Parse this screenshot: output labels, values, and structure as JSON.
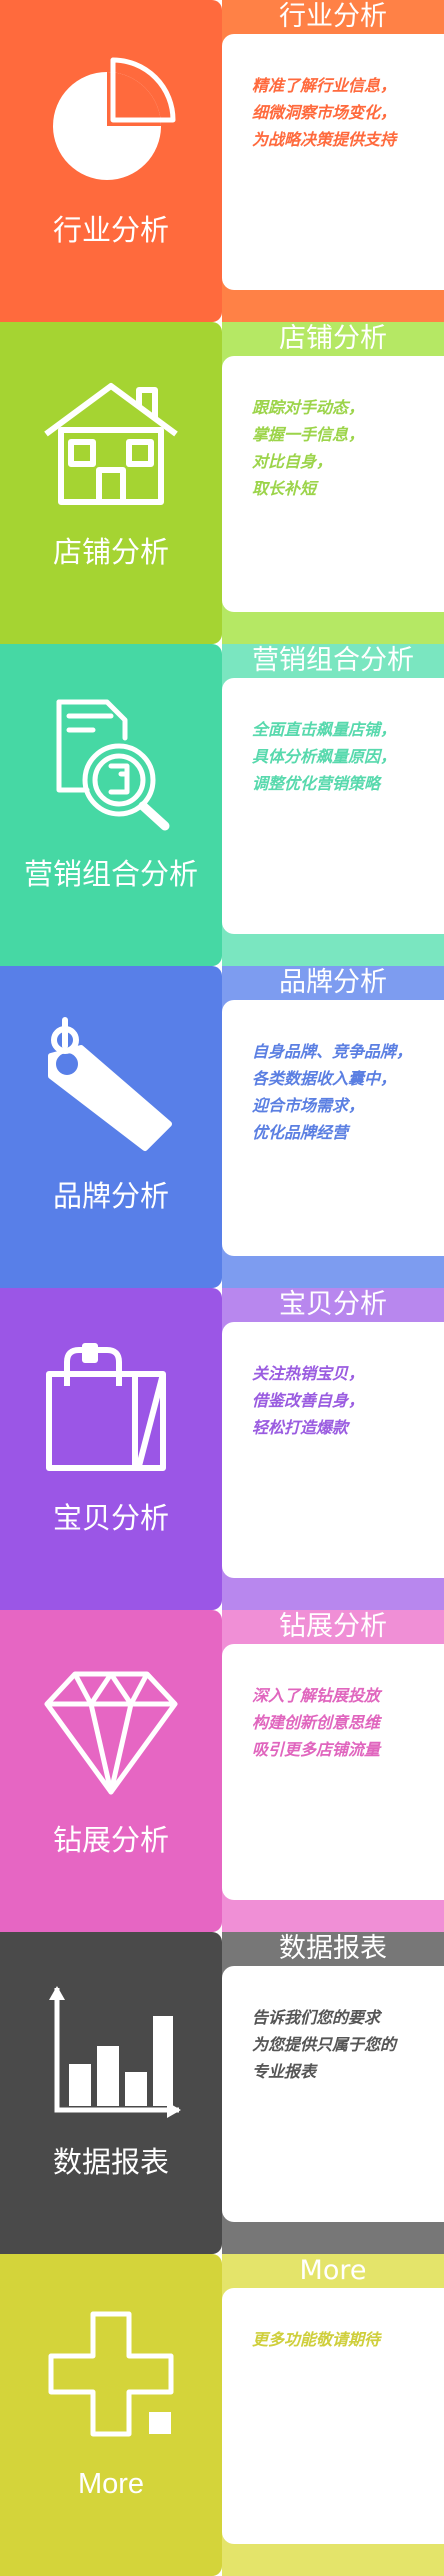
{
  "panels": [
    {
      "title": "行业分析",
      "label": "行业分析",
      "icon": "pie-chart-icon",
      "colors": {
        "left": "#ff6a3d",
        "bar": "#ff8146",
        "card_text": "#ff6a3d"
      },
      "lines": [
        "精准了解行业信息，",
        "细微洞察市场变化，",
        "为战略决策提供支持"
      ]
    },
    {
      "title": "店铺分析",
      "label": "店铺分析",
      "icon": "house-icon",
      "colors": {
        "left": "#a5d432",
        "bar": "#b5e864",
        "card_text": "#9cd44a"
      },
      "lines": [
        "跟踪对手动态，",
        "掌握一手信息，",
        "对比自身，",
        "取长补短"
      ]
    },
    {
      "title": "营销组合分析",
      "label": "营销组合分析",
      "icon": "document-search-icon",
      "colors": {
        "left": "#46d8a4",
        "bar": "#7ae6c0",
        "card_text": "#58d9ad"
      },
      "lines": [
        "全面直击飙量店铺，",
        "具体分析飙量原因，",
        "调整优化营销策略"
      ]
    },
    {
      "title": "品牌分析",
      "label": "品牌分析",
      "icon": "price-tag-icon",
      "colors": {
        "left": "#587fe8",
        "bar": "#7d9cf0",
        "card_text": "#5b7fe2"
      },
      "lines": [
        "自身品牌、竞争品牌，",
        "各类数据收入囊中，",
        "迎合市场需求，",
        "优化品牌经营"
      ]
    },
    {
      "title": "宝贝分析",
      "label": "宝贝分析",
      "icon": "shopping-bag-icon",
      "colors": {
        "left": "#9b56e6",
        "bar": "#b887ee",
        "card_text": "#9a5ce0"
      },
      "lines": [
        "关注热销宝贝，",
        "借鉴改善自身，",
        "轻松打造爆款"
      ]
    },
    {
      "title": "钻展分析",
      "label": "钻展分析",
      "icon": "diamond-icon",
      "colors": {
        "left": "#e666c3",
        "bar": "#f08fd6",
        "card_text": "#e066be"
      },
      "lines": [
        "深入了解钻展投放",
        "构建创新创意思维",
        "吸引更多店铺流量"
      ]
    },
    {
      "title": "数据报表",
      "label": "数据报表",
      "icon": "bar-chart-icon",
      "colors": {
        "left": "#4a4a4a",
        "bar": "#777777",
        "card_text": "#555555"
      },
      "lines": [
        "告诉我们您的要求",
        "为您提供只属于您的",
        "专业报表"
      ]
    },
    {
      "title": "More",
      "label": "More",
      "icon": "plus-icon",
      "colors": {
        "left": "#d4d43a",
        "bar": "#e4e46a",
        "card_text": "#cfcf3c"
      },
      "lines": [
        "更多功能敬请期待"
      ]
    }
  ]
}
